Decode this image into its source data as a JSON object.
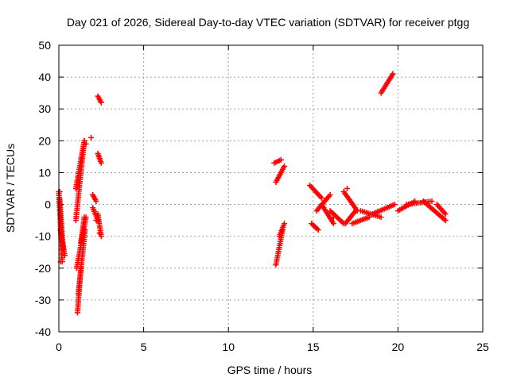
{
  "chart_data": {
    "type": "scatter",
    "title": "Day 021 of 2026, Sidereal Day-to-day VTEC variation (SDTVAR) for receiver ptgg",
    "xlabel": "GPS time / hours",
    "ylabel": "SDTVAR / TECUs",
    "xlim": [
      0,
      25
    ],
    "ylim": [
      -40,
      50
    ],
    "xticks": [
      0,
      5,
      10,
      15,
      20,
      25
    ],
    "yticks": [
      -40,
      -30,
      -20,
      -10,
      0,
      10,
      20,
      30,
      40,
      50
    ],
    "grid": true,
    "marker": "+",
    "color": "#ff0000",
    "segments": [
      {
        "x": [
          0.0,
          0.2
        ],
        "y": [
          4,
          -18
        ]
      },
      {
        "x": [
          0.05,
          0.25
        ],
        "y": [
          2,
          -14
        ]
      },
      {
        "x": [
          0.1,
          0.35
        ],
        "y": [
          -8,
          -16
        ]
      },
      {
        "x": [
          1.0,
          1.5
        ],
        "y": [
          5,
          20
        ]
      },
      {
        "x": [
          1.0,
          1.5
        ],
        "y": [
          -5,
          20
        ]
      },
      {
        "x": [
          1.1,
          1.3
        ],
        "y": [
          -34,
          -20
        ]
      },
      {
        "x": [
          1.05,
          1.6
        ],
        "y": [
          -20,
          -4
        ]
      },
      {
        "x": [
          1.15,
          1.55
        ],
        "y": [
          -28,
          -8
        ]
      },
      {
        "x": [
          1.3,
          1.5
        ],
        "y": [
          -12,
          -4
        ]
      },
      {
        "x": [
          2.0,
          2.2
        ],
        "y": [
          3,
          1
        ]
      },
      {
        "x": [
          2.0,
          2.3
        ],
        "y": [
          -1,
          -5
        ]
      },
      {
        "x": [
          2.3,
          2.5
        ],
        "y": [
          16,
          13
        ]
      },
      {
        "x": [
          2.3,
          2.5
        ],
        "y": [
          34,
          32
        ]
      },
      {
        "x": [
          2.3,
          2.5
        ],
        "y": [
          -3,
          -10
        ]
      },
      {
        "x": [
          12.7,
          13.1
        ],
        "y": [
          13,
          14
        ]
      },
      {
        "x": [
          12.8,
          13.3
        ],
        "y": [
          7,
          12
        ]
      },
      {
        "x": [
          12.8,
          13.2
        ],
        "y": [
          -19,
          -8
        ]
      },
      {
        "x": [
          13.0,
          13.3
        ],
        "y": [
          -10,
          -6
        ]
      },
      {
        "x": [
          14.8,
          15.5
        ],
        "y": [
          6,
          2
        ]
      },
      {
        "x": [
          15.2,
          16.0
        ],
        "y": [
          -2,
          3
        ]
      },
      {
        "x": [
          14.9,
          15.3
        ],
        "y": [
          -6,
          -8
        ]
      },
      {
        "x": [
          15.5,
          16.2
        ],
        "y": [
          0,
          -6
        ]
      },
      {
        "x": [
          16.0,
          16.8
        ],
        "y": [
          -2,
          -6
        ]
      },
      {
        "x": [
          16.8,
          17.6
        ],
        "y": [
          4,
          -2
        ]
      },
      {
        "x": [
          16.9,
          17.5
        ],
        "y": [
          -6,
          -2
        ]
      },
      {
        "x": [
          17.3,
          18.3
        ],
        "y": [
          -6,
          -4
        ]
      },
      {
        "x": [
          17.8,
          19.0
        ],
        "y": [
          -2,
          -4
        ]
      },
      {
        "x": [
          18.5,
          19.8
        ],
        "y": [
          -3,
          0
        ]
      },
      {
        "x": [
          19.0,
          19.7
        ],
        "y": [
          35,
          41
        ]
      },
      {
        "x": [
          20.0,
          21.0
        ],
        "y": [
          -2,
          1
        ]
      },
      {
        "x": [
          20.5,
          22.0
        ],
        "y": [
          0,
          1
        ]
      },
      {
        "x": [
          21.5,
          22.8
        ],
        "y": [
          1,
          -5
        ]
      },
      {
        "x": [
          22.3,
          22.8
        ],
        "y": [
          0,
          -3
        ]
      }
    ],
    "points": [
      {
        "x": 0.0,
        "y": 4.0
      },
      {
        "x": 0.05,
        "y": 4.0
      },
      {
        "x": 0.1,
        "y": -18.0
      },
      {
        "x": 1.9,
        "y": 21.0
      },
      {
        "x": 2.0,
        "y": 3.0
      },
      {
        "x": 2.2,
        "y": -5.0
      },
      {
        "x": 2.4,
        "y": -9.0
      },
      {
        "x": 1.6,
        "y": 19.0
      },
      {
        "x": 13.1,
        "y": 14.0
      },
      {
        "x": 15.1,
        "y": -7.0
      },
      {
        "x": 16.2,
        "y": -4.0
      },
      {
        "x": 17.0,
        "y": 5.0
      },
      {
        "x": 19.7,
        "y": 41.0
      },
      {
        "x": 22.8,
        "y": -5.0
      }
    ]
  }
}
